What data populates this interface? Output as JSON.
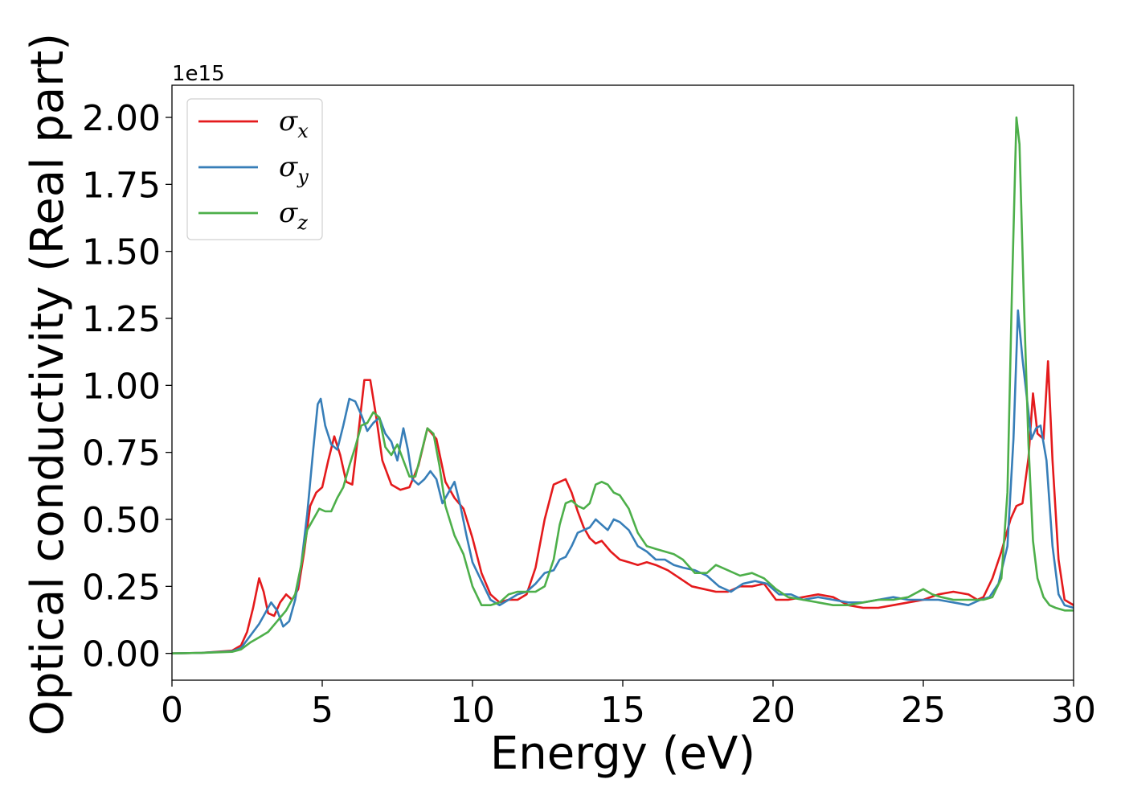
{
  "chart_data": {
    "type": "line",
    "title": "",
    "xlabel": "Energy (eV)",
    "ylabel": "Optical conductivity (Real part)",
    "y_offset_label": "1e15",
    "xlim": [
      0,
      30
    ],
    "ylim": [
      -0.1,
      2.12
    ],
    "xticks": [
      0,
      5,
      10,
      15,
      20,
      25,
      30
    ],
    "xtick_labels": [
      "0",
      "5",
      "10",
      "15",
      "20",
      "25",
      "30"
    ],
    "yticks": [
      0.0,
      0.25,
      0.5,
      0.75,
      1.0,
      1.25,
      1.5,
      1.75,
      2.0
    ],
    "ytick_labels": [
      "0.00",
      "0.25",
      "0.50",
      "0.75",
      "1.00",
      "1.25",
      "1.50",
      "1.75",
      "2.00"
    ],
    "grid": false,
    "legend_position": "top-left",
    "series": [
      {
        "name": "σ_x",
        "legend_main": "σ",
        "legend_sub": "x",
        "color": "#e41a1c",
        "x": [
          0,
          1,
          2,
          2.3,
          2.5,
          2.7,
          2.9,
          3.05,
          3.2,
          3.4,
          3.6,
          3.8,
          4.0,
          4.2,
          4.4,
          4.6,
          4.8,
          5.0,
          5.2,
          5.4,
          5.6,
          5.8,
          6.0,
          6.2,
          6.4,
          6.6,
          6.8,
          7.0,
          7.3,
          7.6,
          7.9,
          8.2,
          8.5,
          8.8,
          9.1,
          9.4,
          9.7,
          10.0,
          10.3,
          10.6,
          10.9,
          11.2,
          11.5,
          11.8,
          12.1,
          12.4,
          12.7,
          12.9,
          13.1,
          13.3,
          13.5,
          13.7,
          13.9,
          14.1,
          14.3,
          14.6,
          14.9,
          15.2,
          15.5,
          15.8,
          16.1,
          16.5,
          16.9,
          17.3,
          17.7,
          18.1,
          18.5,
          18.9,
          19.3,
          19.7,
          20.1,
          20.5,
          21,
          21.5,
          22,
          22.5,
          23,
          23.5,
          24,
          24.5,
          25,
          25.5,
          26,
          26.5,
          26.8,
          27.0,
          27.3,
          27.6,
          27.9,
          28.1,
          28.3,
          28.5,
          28.65,
          28.8,
          29.0,
          29.15,
          29.3,
          29.5,
          29.7,
          30
        ],
        "y": [
          0,
          0.002,
          0.01,
          0.03,
          0.08,
          0.17,
          0.28,
          0.23,
          0.15,
          0.14,
          0.19,
          0.22,
          0.2,
          0.24,
          0.38,
          0.55,
          0.6,
          0.62,
          0.72,
          0.81,
          0.74,
          0.64,
          0.63,
          0.82,
          1.02,
          1.02,
          0.88,
          0.72,
          0.63,
          0.61,
          0.62,
          0.7,
          0.84,
          0.8,
          0.64,
          0.58,
          0.54,
          0.43,
          0.3,
          0.22,
          0.19,
          0.2,
          0.2,
          0.22,
          0.32,
          0.5,
          0.63,
          0.64,
          0.65,
          0.6,
          0.53,
          0.47,
          0.43,
          0.41,
          0.42,
          0.38,
          0.35,
          0.34,
          0.33,
          0.34,
          0.33,
          0.31,
          0.28,
          0.25,
          0.24,
          0.23,
          0.23,
          0.25,
          0.25,
          0.26,
          0.2,
          0.2,
          0.21,
          0.22,
          0.21,
          0.18,
          0.17,
          0.17,
          0.18,
          0.19,
          0.2,
          0.22,
          0.23,
          0.22,
          0.2,
          0.21,
          0.28,
          0.38,
          0.5,
          0.55,
          0.56,
          0.73,
          0.97,
          0.82,
          0.8,
          1.09,
          0.72,
          0.35,
          0.2,
          0.18
        ]
      },
      {
        "name": "σ_y",
        "legend_main": "σ",
        "legend_sub": "y",
        "color": "#377eb8",
        "x": [
          0,
          1,
          2,
          2.3,
          2.5,
          2.7,
          2.9,
          3.1,
          3.3,
          3.5,
          3.7,
          3.9,
          4.1,
          4.3,
          4.5,
          4.7,
          4.85,
          4.95,
          5.1,
          5.3,
          5.5,
          5.7,
          5.9,
          6.1,
          6.3,
          6.5,
          6.7,
          6.9,
          7.1,
          7.3,
          7.5,
          7.7,
          7.85,
          8.0,
          8.2,
          8.4,
          8.6,
          8.8,
          9.0,
          9.2,
          9.4,
          9.6,
          9.8,
          10.0,
          10.3,
          10.6,
          10.9,
          11.2,
          11.5,
          11.8,
          12.1,
          12.4,
          12.7,
          12.9,
          13.1,
          13.3,
          13.5,
          13.7,
          13.9,
          14.1,
          14.3,
          14.5,
          14.7,
          14.9,
          15.2,
          15.5,
          15.8,
          16.1,
          16.4,
          16.7,
          17,
          17.4,
          17.8,
          18.2,
          18.6,
          19,
          19.4,
          19.8,
          20.2,
          20.6,
          21,
          21.5,
          22,
          22.5,
          23,
          23.5,
          24,
          24.5,
          25,
          25.5,
          26,
          26.5,
          26.9,
          27.2,
          27.5,
          27.8,
          28.0,
          28.15,
          28.3,
          28.45,
          28.6,
          28.75,
          28.9,
          29.1,
          29.3,
          29.5,
          29.7,
          30
        ],
        "y": [
          0,
          0.002,
          0.008,
          0.02,
          0.05,
          0.08,
          0.11,
          0.15,
          0.19,
          0.16,
          0.1,
          0.12,
          0.2,
          0.33,
          0.52,
          0.76,
          0.93,
          0.95,
          0.85,
          0.78,
          0.76,
          0.85,
          0.95,
          0.94,
          0.89,
          0.83,
          0.86,
          0.88,
          0.82,
          0.79,
          0.72,
          0.84,
          0.76,
          0.65,
          0.63,
          0.65,
          0.68,
          0.65,
          0.56,
          0.6,
          0.64,
          0.55,
          0.44,
          0.34,
          0.27,
          0.2,
          0.18,
          0.2,
          0.22,
          0.23,
          0.26,
          0.3,
          0.31,
          0.35,
          0.36,
          0.4,
          0.45,
          0.46,
          0.47,
          0.5,
          0.48,
          0.46,
          0.5,
          0.49,
          0.46,
          0.4,
          0.38,
          0.35,
          0.35,
          0.33,
          0.32,
          0.31,
          0.29,
          0.25,
          0.23,
          0.26,
          0.27,
          0.26,
          0.22,
          0.22,
          0.2,
          0.21,
          0.2,
          0.19,
          0.19,
          0.2,
          0.21,
          0.2,
          0.2,
          0.2,
          0.19,
          0.18,
          0.2,
          0.21,
          0.26,
          0.4,
          0.8,
          1.28,
          1.1,
          0.95,
          0.8,
          0.84,
          0.85,
          0.72,
          0.4,
          0.22,
          0.18,
          0.17
        ]
      },
      {
        "name": "σ_z",
        "legend_main": "σ",
        "legend_sub": "z",
        "color": "#4daf4a",
        "x": [
          0,
          1,
          2,
          2.3,
          2.6,
          2.9,
          3.2,
          3.5,
          3.8,
          4.1,
          4.3,
          4.5,
          4.7,
          4.9,
          5.1,
          5.3,
          5.5,
          5.7,
          5.9,
          6.1,
          6.3,
          6.5,
          6.7,
          6.9,
          7.1,
          7.3,
          7.5,
          7.7,
          7.9,
          8.1,
          8.3,
          8.5,
          8.7,
          8.9,
          9.1,
          9.4,
          9.7,
          10.0,
          10.3,
          10.6,
          10.9,
          11.2,
          11.5,
          11.8,
          12.1,
          12.4,
          12.7,
          12.9,
          13.1,
          13.3,
          13.5,
          13.7,
          13.9,
          14.1,
          14.3,
          14.5,
          14.7,
          14.9,
          15.2,
          15.5,
          15.8,
          16.1,
          16.4,
          16.7,
          17,
          17.4,
          17.8,
          18.1,
          18.5,
          18.9,
          19.3,
          19.7,
          20.1,
          20.5,
          21,
          21.5,
          22,
          22.5,
          23,
          23.5,
          24,
          24.5,
          25,
          25.3,
          25.6,
          26,
          26.5,
          27,
          27.3,
          27.6,
          27.8,
          27.95,
          28.1,
          28.2,
          28.35,
          28.5,
          28.65,
          28.8,
          29.0,
          29.2,
          29.4,
          29.7,
          30
        ],
        "y": [
          0,
          0.002,
          0.006,
          0.015,
          0.04,
          0.06,
          0.08,
          0.12,
          0.16,
          0.22,
          0.33,
          0.46,
          0.5,
          0.54,
          0.53,
          0.53,
          0.58,
          0.62,
          0.7,
          0.77,
          0.85,
          0.86,
          0.9,
          0.88,
          0.77,
          0.74,
          0.78,
          0.72,
          0.66,
          0.66,
          0.75,
          0.84,
          0.82,
          0.7,
          0.55,
          0.44,
          0.37,
          0.25,
          0.18,
          0.18,
          0.19,
          0.22,
          0.23,
          0.23,
          0.23,
          0.25,
          0.35,
          0.48,
          0.56,
          0.57,
          0.55,
          0.54,
          0.56,
          0.63,
          0.64,
          0.63,
          0.6,
          0.59,
          0.54,
          0.45,
          0.4,
          0.39,
          0.38,
          0.37,
          0.35,
          0.3,
          0.3,
          0.33,
          0.31,
          0.29,
          0.3,
          0.28,
          0.24,
          0.21,
          0.2,
          0.19,
          0.18,
          0.18,
          0.19,
          0.2,
          0.2,
          0.21,
          0.24,
          0.22,
          0.21,
          0.2,
          0.2,
          0.2,
          0.21,
          0.28,
          0.6,
          1.35,
          2.0,
          1.9,
          1.3,
          0.78,
          0.42,
          0.28,
          0.21,
          0.18,
          0.17,
          0.16,
          0.16
        ]
      }
    ]
  }
}
